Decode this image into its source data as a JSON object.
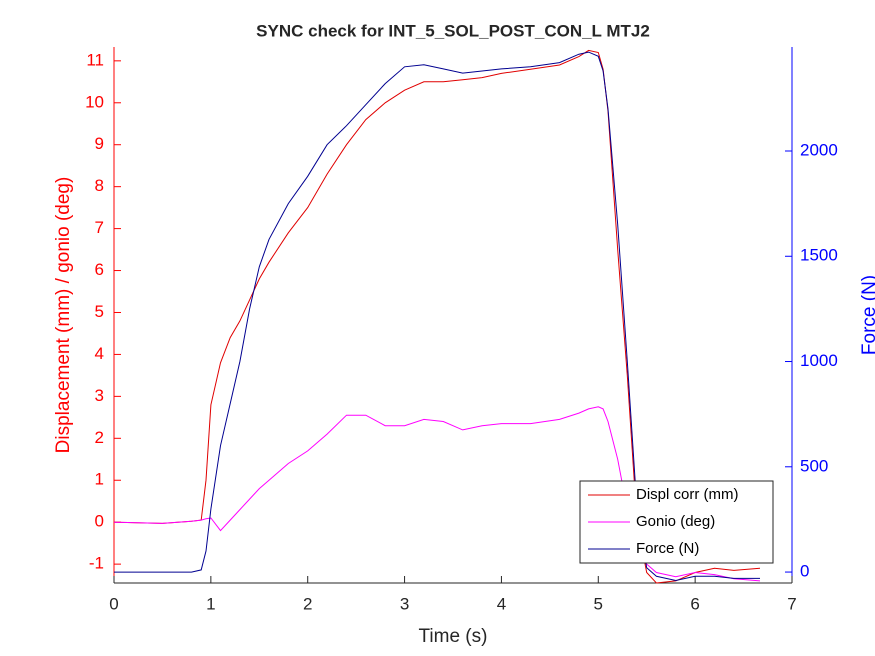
{
  "chart_data": {
    "type": "line",
    "title": "SYNC check for INT_5_SOL_POST_CON_L MTJ2",
    "x_label": "Time (s)",
    "y_label": "Displacement (mm) / gonio (deg)",
    "y2_label": "Force (N)",
    "x": [
      0,
      0.5,
      0.8,
      0.9,
      0.95,
      1.0,
      1.1,
      1.2,
      1.3,
      1.4,
      1.5,
      1.6,
      1.8,
      2.0,
      2.2,
      2.4,
      2.6,
      2.8,
      3.0,
      3.2,
      3.4,
      3.6,
      3.8,
      4.0,
      4.3,
      4.6,
      4.8,
      4.9,
      5.0,
      5.05,
      5.1,
      5.2,
      5.3,
      5.4,
      5.5,
      5.6,
      5.8,
      6.0,
      6.2,
      6.4,
      6.67
    ],
    "series": [
      {
        "name": "Displ corr (mm)",
        "color": "#e00000",
        "values": [
          0,
          -0.03,
          0.02,
          0.05,
          1.0,
          2.8,
          3.8,
          4.4,
          4.8,
          5.3,
          5.8,
          6.2,
          6.9,
          7.5,
          8.3,
          9.0,
          9.6,
          10.0,
          10.3,
          10.5,
          10.5,
          10.55,
          10.6,
          10.7,
          10.8,
          10.9,
          11.1,
          11.25,
          11.2,
          10.8,
          9.8,
          6.5,
          3.5,
          0,
          -1.2,
          -1.45,
          -1.4,
          -1.2,
          -1.1,
          -1.15,
          -1.1
        ]
      },
      {
        "name": "Gonio (deg)",
        "color": "#ff00ff",
        "values": [
          0,
          -0.03,
          0.02,
          0.05,
          0.08,
          0.1,
          -0.2,
          0.05,
          0.3,
          0.55,
          0.8,
          1.0,
          1.4,
          1.7,
          2.1,
          2.55,
          2.55,
          2.3,
          2.3,
          2.45,
          2.4,
          2.2,
          2.3,
          2.35,
          2.35,
          2.45,
          2.6,
          2.7,
          2.75,
          2.7,
          2.4,
          1.5,
          0.3,
          -0.5,
          -1.0,
          -1.2,
          -1.3,
          -1.2,
          -1.25,
          -1.35,
          -1.4
        ]
      },
      {
        "name": "Force (N)",
        "color": "#000090",
        "axis": "y2",
        "values": [
          0,
          0,
          0,
          10,
          100,
          300,
          600,
          800,
          1000,
          1250,
          1450,
          1580,
          1750,
          1880,
          2030,
          2120,
          2220,
          2320,
          2400,
          2410,
          2390,
          2370,
          2380,
          2390,
          2400,
          2420,
          2460,
          2470,
          2450,
          2380,
          2200,
          1650,
          1000,
          300,
          20,
          -20,
          -40,
          -20,
          -20,
          -30,
          -30
        ]
      }
    ],
    "xlim": [
      0,
      7
    ],
    "xticks": [
      0,
      1,
      2,
      3,
      4,
      5,
      6,
      7
    ],
    "ylim": [
      -1.45,
      11.33
    ],
    "yticks": [
      -1,
      0,
      1,
      2,
      3,
      4,
      5,
      6,
      7,
      8,
      9,
      10,
      11
    ],
    "y2lim": [
      -52,
      2494
    ],
    "y2ticks": [
      0,
      500,
      1000,
      1500,
      2000
    ],
    "y_color": "#ff0000",
    "y2_color": "#0000ff",
    "legend": "lower right"
  }
}
